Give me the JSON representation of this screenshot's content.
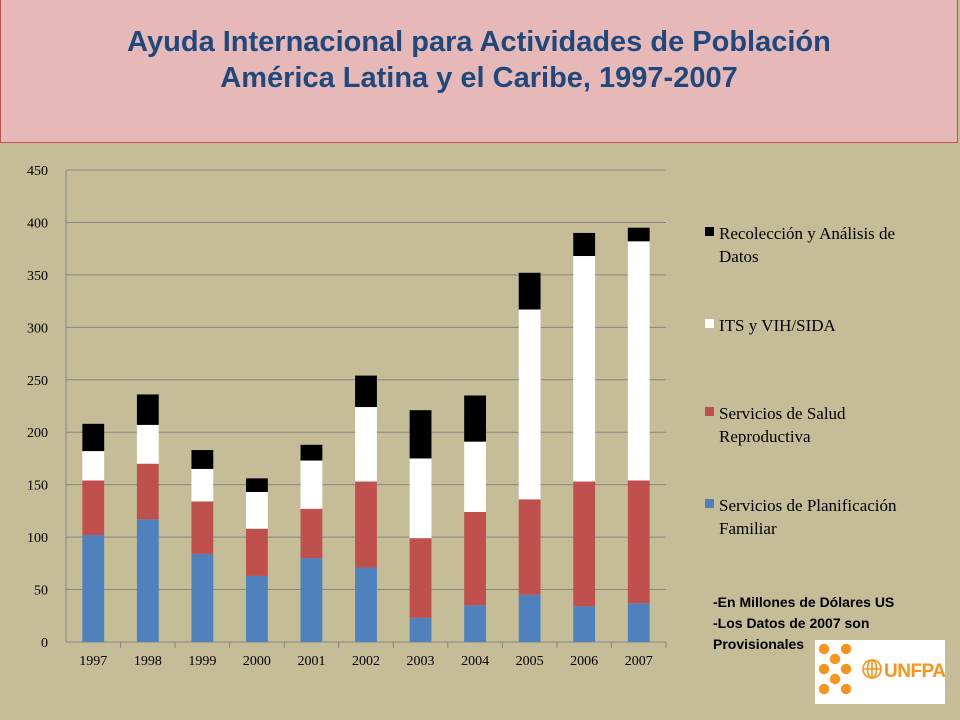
{
  "title": {
    "line1": "Ayuda Internacional para Actividades de Población",
    "line2": "América Latina y el Caribe, 1997-2007"
  },
  "notes": {
    "line1": "-En Millones de Dólares US",
    "line2": "-Los Datos de 2007 son",
    "line3": "Provisionales"
  },
  "logo": {
    "text": "UNFPA",
    "icon": "un-emblem-icon"
  },
  "colors": {
    "background": "#c4bd97",
    "banner": "#e6b9b8",
    "title": "#1f497d",
    "logo_dots": "#f7941d"
  },
  "chart_data": {
    "type": "bar",
    "stacked": true,
    "categories": [
      "1997",
      "1998",
      "1999",
      "2000",
      "2001",
      "2002",
      "2003",
      "2004",
      "2005",
      "2006",
      "2007"
    ],
    "series": [
      {
        "name": "Servicios de Planificación Familiar",
        "color": "#4f81bd",
        "values": [
          102,
          117,
          84,
          63,
          80,
          71,
          23,
          35,
          45,
          34,
          37
        ]
      },
      {
        "name": "Servicios de Salud Reproductiva",
        "color": "#c0504d",
        "values": [
          52,
          53,
          50,
          45,
          47,
          82,
          76,
          89,
          91,
          119,
          117
        ]
      },
      {
        "name": "ITS y VIH/SIDA",
        "color": "#ffffff",
        "values": [
          28,
          37,
          31,
          35,
          46,
          71,
          76,
          67,
          181,
          215,
          228
        ]
      },
      {
        "name": "Recolección y Análisis de Datos",
        "color": "#000000",
        "values": [
          26,
          29,
          18,
          13,
          15,
          30,
          46,
          44,
          35,
          22,
          13
        ]
      }
    ],
    "legend_order": [
      3,
      2,
      1,
      0
    ],
    "ylim": [
      0,
      450
    ],
    "yticks": [
      0,
      50,
      100,
      150,
      200,
      250,
      300,
      350,
      400,
      450
    ],
    "grid": true,
    "legend_position": "right",
    "title": "",
    "xlabel": "",
    "ylabel": ""
  }
}
